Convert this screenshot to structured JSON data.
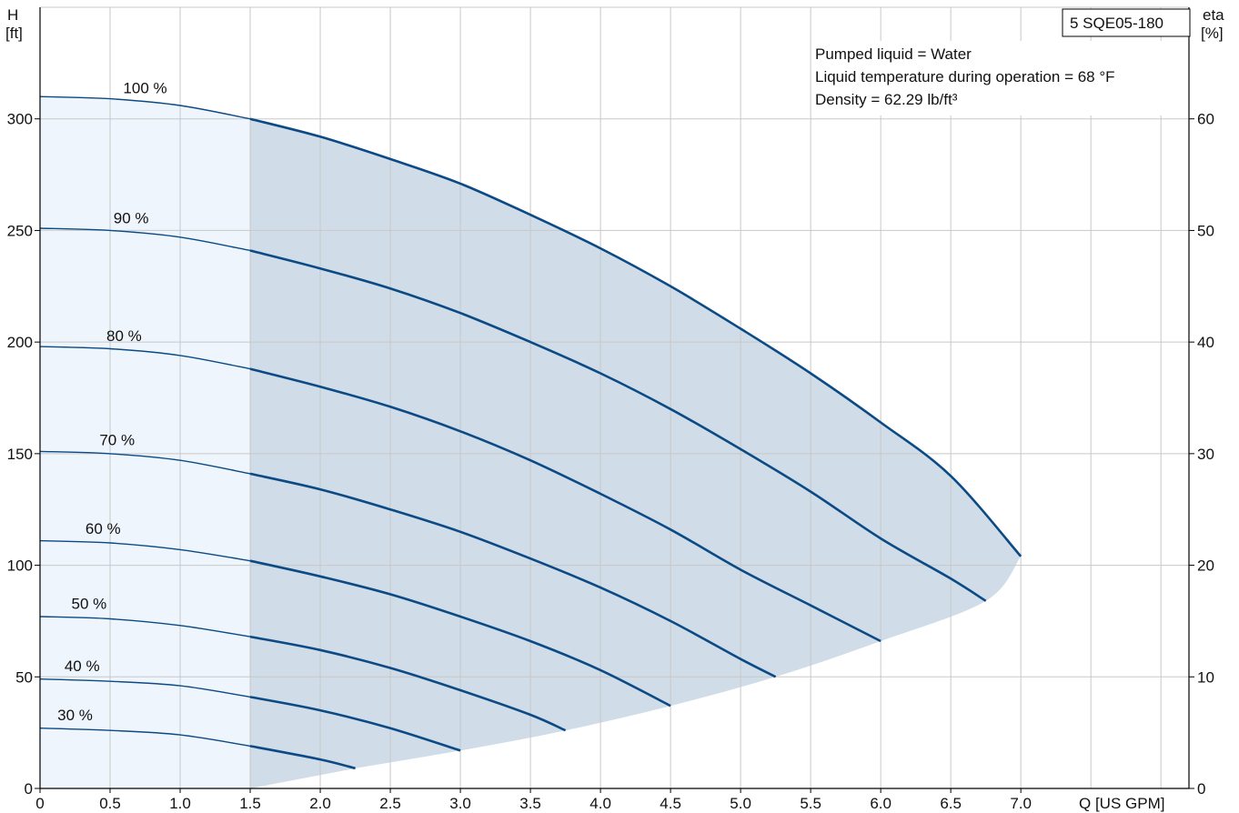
{
  "chart_data": {
    "type": "line",
    "title": "5 SQE05-180",
    "y_axis_left": {
      "label_top": "H",
      "label_unit": "[ft]",
      "ylim": [
        0,
        350
      ],
      "ticks": [
        0,
        50,
        100,
        150,
        200,
        250,
        300
      ]
    },
    "y_axis_right": {
      "label_top": "eta",
      "label_unit": "[%]",
      "ylim": [
        0,
        70
      ],
      "ticks": [
        0,
        10,
        20,
        30,
        40,
        50,
        60
      ]
    },
    "x_axis": {
      "label": "Q [US GPM]",
      "xlim": [
        0,
        8.2
      ],
      "ticks": [
        0,
        0.5,
        1.0,
        1.5,
        2.0,
        2.5,
        3.0,
        3.5,
        4.0,
        4.5,
        5.0,
        5.5,
        6.0,
        6.5,
        7.0
      ],
      "tick_labels": [
        "0",
        "0.5",
        "1.0",
        "1.5",
        "2.0",
        "2.5",
        "3.0",
        "3.5",
        "4.0",
        "4.5",
        "5.0",
        "5.5",
        "6.0",
        "6.5",
        "7.0"
      ]
    },
    "grid": true,
    "info_lines": [
      "Pumped liquid = Water",
      "Liquid temperature during operation = 68 °F",
      "Density = 62.29 lb/ft³"
    ],
    "min_flow_q": 1.5,
    "series": [
      {
        "name": "100 %",
        "shutoff_head": 310,
        "end_q": 7.0,
        "points": [
          [
            0,
            310
          ],
          [
            0.5,
            309
          ],
          [
            1.0,
            306
          ],
          [
            1.5,
            300
          ],
          [
            2.0,
            292
          ],
          [
            2.5,
            282
          ],
          [
            3.0,
            271
          ],
          [
            3.5,
            257
          ],
          [
            4.0,
            242
          ],
          [
            4.5,
            225
          ],
          [
            5.0,
            206
          ],
          [
            5.5,
            186
          ],
          [
            6.0,
            164
          ],
          [
            6.5,
            140
          ],
          [
            7.0,
            104
          ]
        ]
      },
      {
        "name": "90 %",
        "shutoff_head": 251,
        "end_q": 6.75,
        "points": [
          [
            0,
            251
          ],
          [
            0.5,
            250
          ],
          [
            1.0,
            247
          ],
          [
            1.5,
            241
          ],
          [
            2.0,
            233
          ],
          [
            2.5,
            224
          ],
          [
            3.0,
            213
          ],
          [
            3.5,
            200
          ],
          [
            4.0,
            186
          ],
          [
            4.5,
            170
          ],
          [
            5.0,
            152
          ],
          [
            5.5,
            133
          ],
          [
            6.0,
            112
          ],
          [
            6.5,
            94
          ],
          [
            6.75,
            84
          ]
        ]
      },
      {
        "name": "80 %",
        "shutoff_head": 198,
        "end_q": 6.0,
        "points": [
          [
            0,
            198
          ],
          [
            0.5,
            197
          ],
          [
            1.0,
            194
          ],
          [
            1.5,
            188
          ],
          [
            2.0,
            180
          ],
          [
            2.5,
            171
          ],
          [
            3.0,
            160
          ],
          [
            3.5,
            147
          ],
          [
            4.0,
            132
          ],
          [
            4.5,
            116
          ],
          [
            5.0,
            98
          ],
          [
            5.5,
            82
          ],
          [
            6.0,
            66
          ]
        ]
      },
      {
        "name": "70 %",
        "shutoff_head": 151,
        "end_q": 5.25,
        "points": [
          [
            0,
            151
          ],
          [
            0.5,
            150
          ],
          [
            1.0,
            147
          ],
          [
            1.5,
            141
          ],
          [
            2.0,
            134
          ],
          [
            2.5,
            125
          ],
          [
            3.0,
            115
          ],
          [
            3.5,
            103
          ],
          [
            4.0,
            90
          ],
          [
            4.5,
            75
          ],
          [
            5.0,
            58
          ],
          [
            5.25,
            50
          ]
        ]
      },
      {
        "name": "60 %",
        "shutoff_head": 111,
        "end_q": 4.5,
        "points": [
          [
            0,
            111
          ],
          [
            0.5,
            110
          ],
          [
            1.0,
            107
          ],
          [
            1.5,
            102
          ],
          [
            2.0,
            95
          ],
          [
            2.5,
            87
          ],
          [
            3.0,
            77
          ],
          [
            3.5,
            66
          ],
          [
            4.0,
            53
          ],
          [
            4.5,
            37
          ]
        ]
      },
      {
        "name": "50 %",
        "shutoff_head": 77,
        "end_q": 3.75,
        "points": [
          [
            0,
            77
          ],
          [
            0.5,
            76
          ],
          [
            1.0,
            73
          ],
          [
            1.5,
            68
          ],
          [
            2.0,
            62
          ],
          [
            2.5,
            54
          ],
          [
            3.0,
            44
          ],
          [
            3.5,
            33
          ],
          [
            3.75,
            26
          ]
        ]
      },
      {
        "name": "40 %",
        "shutoff_head": 49,
        "end_q": 3.0,
        "points": [
          [
            0,
            49
          ],
          [
            0.5,
            48
          ],
          [
            1.0,
            46
          ],
          [
            1.5,
            41
          ],
          [
            2.0,
            35
          ],
          [
            2.5,
            27
          ],
          [
            3.0,
            17
          ]
        ]
      },
      {
        "name": "30 %",
        "shutoff_head": 27,
        "end_q": 2.25,
        "points": [
          [
            0,
            27
          ],
          [
            0.5,
            26
          ],
          [
            1.0,
            24
          ],
          [
            1.5,
            19
          ],
          [
            2.0,
            13
          ],
          [
            2.25,
            9
          ]
        ]
      }
    ],
    "colors": {
      "curve": "#0b4a84",
      "operating_area": "#d0dce8",
      "min_flow_area": "#eef5fc",
      "grid": "#c8c8c8",
      "axis": "#000000"
    }
  }
}
